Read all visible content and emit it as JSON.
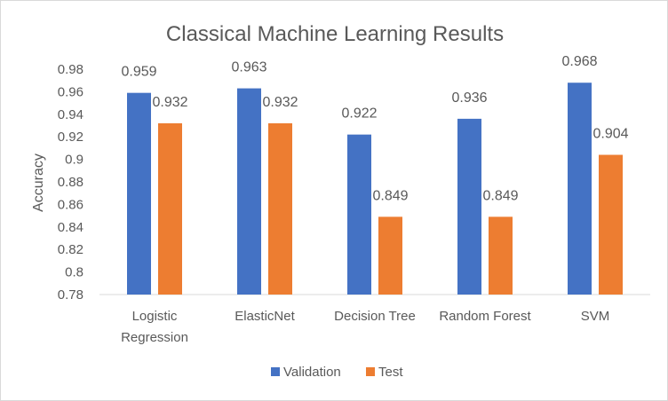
{
  "chart_data": {
    "type": "bar",
    "title": "Classical Machine Learning Results",
    "ylabel": "Accuracy",
    "xlabel": "",
    "ylim": [
      0.78,
      0.98
    ],
    "yticks": [
      "0.78",
      "0.8",
      "0.82",
      "0.84",
      "0.86",
      "0.88",
      "0.9",
      "0.92",
      "0.94",
      "0.96",
      "0.98"
    ],
    "categories": [
      [
        "Logistic",
        "Regression"
      ],
      [
        "ElasticNet"
      ],
      [
        "Decision Tree"
      ],
      [
        "Random Forest"
      ],
      [
        "SVM"
      ]
    ],
    "series": [
      {
        "name": "Validation",
        "color": "#4472C4",
        "values": [
          0.959,
          0.963,
          0.922,
          0.936,
          0.968
        ],
        "labels": [
          "0.959",
          "0.963",
          "0.922",
          "0.936",
          "0.968"
        ]
      },
      {
        "name": "Test",
        "color": "#ED7D31",
        "values": [
          0.932,
          0.932,
          0.849,
          0.849,
          0.904
        ],
        "labels": [
          "0.932",
          "0.932",
          "0.849",
          "0.849",
          "0.904"
        ]
      }
    ],
    "grid": false,
    "legend": "bottom"
  }
}
